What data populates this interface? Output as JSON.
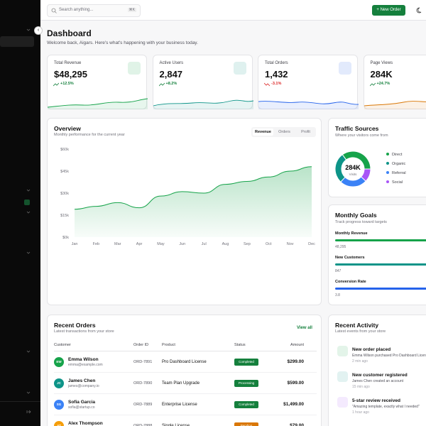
{
  "header": {
    "search_placeholder": "Search anything...",
    "shortcut": "⌘K",
    "button": "New Order"
  },
  "page": {
    "title": "Dashboard",
    "subtitle": "Welcome back, Aigars. Here's what's happening with your business today."
  },
  "stats": [
    {
      "label": "Total Revenue",
      "value": "$48,295",
      "change": "+12.5%",
      "color": "#16a34a",
      "trend": "up"
    },
    {
      "label": "Active Users",
      "value": "2,847",
      "change": "+8.2%",
      "color": "#0d9488",
      "trend": "up"
    },
    {
      "label": "Total Orders",
      "value": "1,432",
      "change": "-3.1%",
      "color": "#2563eb",
      "trend": "down"
    },
    {
      "label": "Page Views",
      "value": "284K",
      "change": "+24.7%",
      "color": "#d97706",
      "trend": "up"
    }
  ],
  "overview": {
    "title": "Overview",
    "subtitle": "Monthly performance for the current year",
    "tabs": [
      "Revenue",
      "Orders",
      "Profit"
    ],
    "chart": {
      "type": "area",
      "categories": [
        "Jan",
        "Feb",
        "Mar",
        "Apr",
        "May",
        "Jun",
        "Jul",
        "Aug",
        "Sep",
        "Oct",
        "Nov",
        "Dec"
      ],
      "values": [
        19000,
        21000,
        23500,
        20000,
        28000,
        31000,
        30000,
        36000,
        38000,
        41000,
        45000,
        48000
      ],
      "color": "#16a34a",
      "ylim": [
        0,
        60000
      ],
      "yticks": [
        {
          "value": 0,
          "label": "$0k"
        },
        {
          "value": 15000,
          "label": "$15k"
        },
        {
          "value": 30000,
          "label": "$30k"
        },
        {
          "value": 45000,
          "label": "$45k"
        },
        {
          "value": 60000,
          "label": "$60k"
        }
      ]
    }
  },
  "traffic": {
    "title": "Traffic Sources",
    "subtitle": "Where your visitors come from",
    "center_value": "284K",
    "center_label": "Visits",
    "chart": {
      "type": "donut",
      "categories": [
        "Direct",
        "Organic",
        "Referral",
        "Social"
      ],
      "values": [
        35,
        28,
        25,
        12
      ],
      "colors": [
        "#16a34a",
        "#0d9488",
        "#3b82f6",
        "#a855f7"
      ]
    }
  },
  "goals": {
    "title": "Monthly Goals",
    "subtitle": "Track progress toward targets",
    "items": [
      {
        "label": "Monthly Revenue",
        "value": "48,295",
        "color": "#16a34a"
      },
      {
        "label": "New Customers",
        "value": "847",
        "color": "#0d9488"
      },
      {
        "label": "Conversion Rate",
        "value": "3.8",
        "color": "#2563eb"
      }
    ]
  },
  "orders": {
    "title": "Recent Orders",
    "subtitle": "Latest transactions from your store",
    "link": "View all",
    "columns": [
      "Customer",
      "Order ID",
      "Product",
      "Status",
      "Amount"
    ],
    "rows": [
      {
        "initials": "EW",
        "name": "Emma Wilson",
        "email": "emma@example.com",
        "id": "ORD-7891",
        "product": "Pro Dashboard License",
        "status": "Completed",
        "amount": "$299.00",
        "avatar": "#16a34a"
      },
      {
        "initials": "JC",
        "name": "James Chen",
        "email": "james@company.io",
        "id": "ORD-7890",
        "product": "Team Plan Upgrade",
        "status": "Processing",
        "amount": "$599.00",
        "avatar": "#0d9488"
      },
      {
        "initials": "SG",
        "name": "Sofia Garcia",
        "email": "sofia@startup.co",
        "id": "ORD-7889",
        "product": "Enterprise License",
        "status": "Completed",
        "amount": "$1,499.00",
        "avatar": "#3b82f6"
      },
      {
        "initials": "AT",
        "name": "Alex Thompson",
        "id": "ORD-7888",
        "product": "Single License",
        "status": "Pending",
        "amount": "$79.00",
        "avatar": "#f59e0b"
      }
    ]
  },
  "activity": {
    "title": "Recent Activity",
    "subtitle": "Latest events from your store",
    "items": [
      {
        "title": "New order placed",
        "detail": "Emma Wilson purchased Pro Dashboard License",
        "time": "2 min ago",
        "color": "#16a34a"
      },
      {
        "title": "New customer registered",
        "detail": "James Chen created an account",
        "time": "15 min ago",
        "color": "#0d9488"
      },
      {
        "title": "5-star review received",
        "detail": "\"Amazing template, exactly what I needed\"",
        "time": "1 hour ago",
        "color": "#a855f7"
      }
    ]
  }
}
